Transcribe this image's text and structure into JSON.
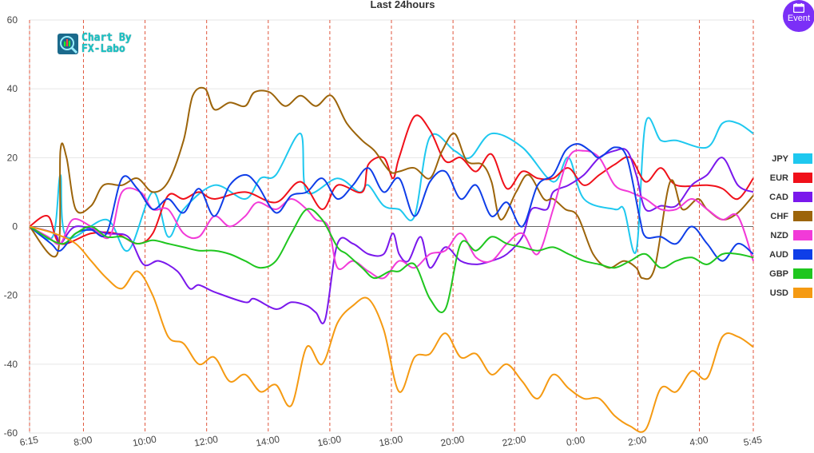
{
  "chart_data": {
    "type": "line",
    "title": "Last 24hours",
    "xlabel": "",
    "ylabel": "",
    "ylim": [
      -60,
      60
    ],
    "yticks": [
      60,
      40,
      20,
      0,
      -20,
      -40,
      -60
    ],
    "x_range": [
      "6:15",
      "5:45"
    ],
    "xticks": [
      "6:15",
      "8:00",
      "10:00",
      "12:00",
      "14:00",
      "16:00",
      "18:00",
      "20:00",
      "22:00",
      "0:00",
      "2:00",
      "4:00",
      "5:45"
    ],
    "x_hours": [
      0,
      1.75,
      3.75,
      5.75,
      7.75,
      9.75,
      11.75,
      13.75,
      15.75,
      17.75,
      19.75,
      21.75,
      23.5
    ],
    "x_span_hours": 23.5,
    "grid": "vertical dashed red at ticks, horizontal light gray",
    "legend_position": "right",
    "series": [
      {
        "name": "JPY",
        "color": "#1ec8ef",
        "x": [
          0,
          0.75,
          1,
          1.2,
          2.5,
          3.2,
          4,
          4.5,
          5,
          6,
          7,
          7.5,
          8,
          8.8,
          9,
          10,
          10.7,
          11,
          11.5,
          12,
          12.5,
          13,
          13.8,
          14.3,
          15,
          16,
          17,
          17.5,
          18,
          19,
          19.3,
          19.7,
          20,
          20.5,
          21,
          22,
          22.5,
          23,
          23.5
        ],
        "y": [
          0,
          -3,
          15,
          -3,
          2,
          -7,
          10,
          -3,
          5,
          12,
          8,
          14,
          15,
          27,
          10,
          14,
          10,
          12,
          6,
          5,
          3,
          26,
          22,
          20,
          27,
          23,
          13,
          20,
          8,
          5,
          5,
          -7,
          30,
          25,
          25,
          23,
          30,
          30,
          27
        ]
      },
      {
        "name": "EUR",
        "color": "#f0101a",
        "x": [
          0,
          0.6,
          1,
          2,
          2.8,
          3.5,
          4,
          4.5,
          5,
          5.5,
          6,
          7,
          8,
          8.8,
          9.5,
          10,
          10.8,
          11,
          11.5,
          11.8,
          12,
          12.5,
          13,
          13.5,
          14,
          14.5,
          15,
          15.5,
          16,
          16.5,
          17,
          17.5,
          18,
          18.5,
          19,
          19.5,
          20,
          20.5,
          21,
          22,
          22.5,
          23,
          23.5
        ],
        "y": [
          0,
          3,
          -5,
          -2,
          -2,
          -5,
          -2,
          9,
          8,
          10,
          8,
          10,
          7,
          13,
          5,
          12,
          10,
          18,
          20,
          14,
          20,
          32,
          28,
          19,
          20,
          16,
          21,
          11,
          16,
          14,
          14,
          17,
          12,
          15,
          18,
          20,
          13,
          17,
          12,
          12,
          11,
          8,
          14
        ]
      },
      {
        "name": "CAD",
        "color": "#7a18ec",
        "x": [
          0,
          0.8,
          1,
          1.5,
          2.5,
          3.2,
          3.7,
          4.2,
          4.8,
          5.2,
          5.5,
          6,
          7,
          7.3,
          8,
          8.5,
          9,
          9.3,
          9.6,
          10,
          10.5,
          11,
          11.5,
          11.8,
          12,
          12.3,
          12.7,
          13,
          13.5,
          14,
          14.5,
          15,
          15.5,
          16,
          16.3,
          16.8,
          17,
          17.5,
          18,
          18.5,
          19,
          19.4,
          19.7,
          20,
          20.5,
          21,
          21.5,
          22,
          22.5,
          23,
          23.5
        ],
        "y": [
          0,
          -2,
          -5,
          0,
          -2,
          -3,
          -11,
          -10,
          -13,
          -18,
          -17,
          -19,
          -22,
          -21,
          -24,
          -22,
          -23,
          -25,
          -27,
          -5,
          -5,
          -8,
          -8,
          -2,
          -8,
          -10,
          -3,
          -12,
          -6,
          -10,
          -11,
          -10,
          -8,
          -3,
          5,
          5,
          10,
          12,
          15,
          20,
          22,
          22,
          15,
          5,
          6,
          6,
          12,
          15,
          20,
          12,
          10
        ]
      },
      {
        "name": "CHF",
        "color": "#9c640a",
        "x": [
          0,
          0.9,
          1,
          1.2,
          1.5,
          2,
          2.4,
          3,
          3.5,
          4,
          4.5,
          5,
          5.3,
          5.7,
          6,
          6.5,
          7,
          7.3,
          7.8,
          8.3,
          8.8,
          9.3,
          9.8,
          10.3,
          10.8,
          11.2,
          11.7,
          12,
          12.5,
          13,
          13.4,
          13.8,
          14.2,
          14.7,
          15,
          15.3,
          15.8,
          16.2,
          16.7,
          17,
          17.4,
          17.8,
          18.3,
          18.8,
          19.3,
          19.7,
          19.9,
          20.3,
          20.8,
          21.2,
          21.7,
          22,
          22.5,
          23,
          23.5
        ],
        "y": [
          0,
          -8,
          22,
          20,
          5,
          6,
          12,
          12,
          14,
          10,
          13,
          25,
          38,
          40,
          34,
          36,
          35,
          39,
          39,
          35,
          38,
          35,
          38,
          30,
          25,
          22,
          16,
          16,
          17,
          14,
          22,
          27,
          19,
          18,
          13,
          2,
          10,
          15,
          8,
          8,
          5,
          3,
          -8,
          -12,
          -10,
          -12,
          -15,
          -12,
          13,
          5,
          8,
          5,
          2,
          4,
          9
        ]
      },
      {
        "name": "NZD",
        "color": "#f23ad8",
        "x": [
          0,
          0.6,
          1,
          1.4,
          2,
          2.6,
          3,
          3.6,
          4,
          4.5,
          5,
          5.5,
          6,
          6.5,
          7,
          7.4,
          8,
          8.5,
          9,
          9.3,
          9.7,
          10,
          10.5,
          11,
          11.5,
          12,
          12.5,
          13,
          13.5,
          14,
          14.5,
          15,
          15.5,
          16,
          16.5,
          17,
          17.5,
          18,
          18.5,
          19,
          19.5,
          20,
          20.5,
          21,
          21.5,
          22,
          22.5,
          23,
          23.5
        ],
        "y": [
          0,
          -3,
          -5,
          2,
          0,
          -3,
          10,
          10,
          5,
          5,
          -2,
          -3,
          3,
          0,
          3,
          7,
          5,
          8,
          5,
          2,
          0,
          -12,
          -10,
          -13,
          -15,
          -10,
          -12,
          -8,
          -7,
          -2,
          -9,
          -10,
          -5,
          -2,
          -8,
          5,
          20,
          22,
          20,
          12,
          10,
          8,
          5,
          5,
          8,
          5,
          2,
          3,
          -10
        ]
      },
      {
        "name": "AUD",
        "color": "#0f3ee8",
        "x": [
          0,
          0.7,
          1,
          1.5,
          2,
          2.5,
          3,
          3.5,
          4,
          4.5,
          5,
          5.5,
          6,
          6.5,
          7,
          7.4,
          8,
          8.5,
          9,
          9.5,
          10,
          10.5,
          11,
          11.5,
          12,
          12.5,
          13,
          13.5,
          14,
          14.5,
          15,
          15.5,
          16,
          16.5,
          17,
          17.4,
          17.8,
          18.2,
          18.5,
          19,
          19.4,
          19.8,
          20,
          20.5,
          21,
          21.5,
          22,
          22.5,
          23,
          23.5
        ],
        "y": [
          0,
          -5,
          -7,
          -2,
          -1,
          -2,
          14,
          11,
          5,
          8,
          4,
          11,
          3,
          12,
          15,
          12,
          4,
          9,
          10,
          14,
          8,
          12,
          17,
          10,
          14,
          3,
          13,
          16,
          8,
          12,
          3,
          7,
          0,
          12,
          15,
          22,
          24,
          22,
          20,
          23,
          20,
          3,
          -3,
          -3,
          -5,
          0,
          -5,
          -10,
          -5,
          -8
        ]
      },
      {
        "name": "GBP",
        "color": "#1fc61f",
        "x": [
          0,
          1,
          1.5,
          2,
          2.5,
          3,
          3.5,
          4,
          4.5,
          5,
          5.5,
          6,
          6.5,
          7,
          7.5,
          8,
          8.5,
          9,
          9.5,
          10,
          10.3,
          10.8,
          11.2,
          11.7,
          12,
          12.5,
          13,
          13.5,
          14,
          14.5,
          15,
          15.5,
          16,
          16.5,
          17,
          17.5,
          18,
          18.5,
          19,
          19.5,
          20,
          20.5,
          21,
          21.5,
          22,
          22.5,
          23,
          23.5
        ],
        "y": [
          0,
          -5,
          -2,
          0,
          -3,
          -3,
          -5,
          -4,
          -5,
          -6,
          -7,
          -7,
          -8,
          -10,
          -12,
          -10,
          -2,
          5,
          2,
          -6,
          -8,
          -12,
          -15,
          -13,
          -13,
          -11,
          -21,
          -24,
          -5,
          -7,
          -3,
          -5,
          -6,
          -7,
          -6,
          -8,
          -10,
          -11,
          -12,
          -10,
          -8,
          -12,
          -10,
          -9,
          -11,
          -8,
          -8,
          -9
        ]
      },
      {
        "name": "USD",
        "color": "#f59a12",
        "x": [
          0,
          0.8,
          1.5,
          2,
          2.5,
          3,
          3.5,
          4,
          4.5,
          5,
          5.5,
          6,
          6.5,
          7,
          7.5,
          8,
          8.5,
          9,
          9.5,
          10,
          10.5,
          11,
          11.5,
          12,
          12.5,
          13,
          13.5,
          14,
          14.5,
          15,
          15.5,
          16,
          16.5,
          17,
          17.5,
          18,
          18.5,
          19,
          19.5,
          20,
          20.5,
          21,
          21.5,
          22,
          22.5,
          23,
          23.5
        ],
        "y": [
          0,
          -2,
          -5,
          -10,
          -15,
          -18,
          -13,
          -20,
          -32,
          -34,
          -40,
          -38,
          -45,
          -43,
          -48,
          -46,
          -52,
          -35,
          -40,
          -28,
          -23,
          -21,
          -30,
          -48,
          -38,
          -37,
          -31,
          -38,
          -37,
          -43,
          -40,
          -45,
          -50,
          -43,
          -47,
          -50,
          -50,
          -55,
          -58,
          -59,
          -47,
          -48,
          -42,
          -44,
          -32,
          -32,
          -35
        ]
      }
    ]
  },
  "event_button": {
    "label": "Event"
  },
  "logo": {
    "line1": "Chart By",
    "line2": "FX-Labo"
  }
}
